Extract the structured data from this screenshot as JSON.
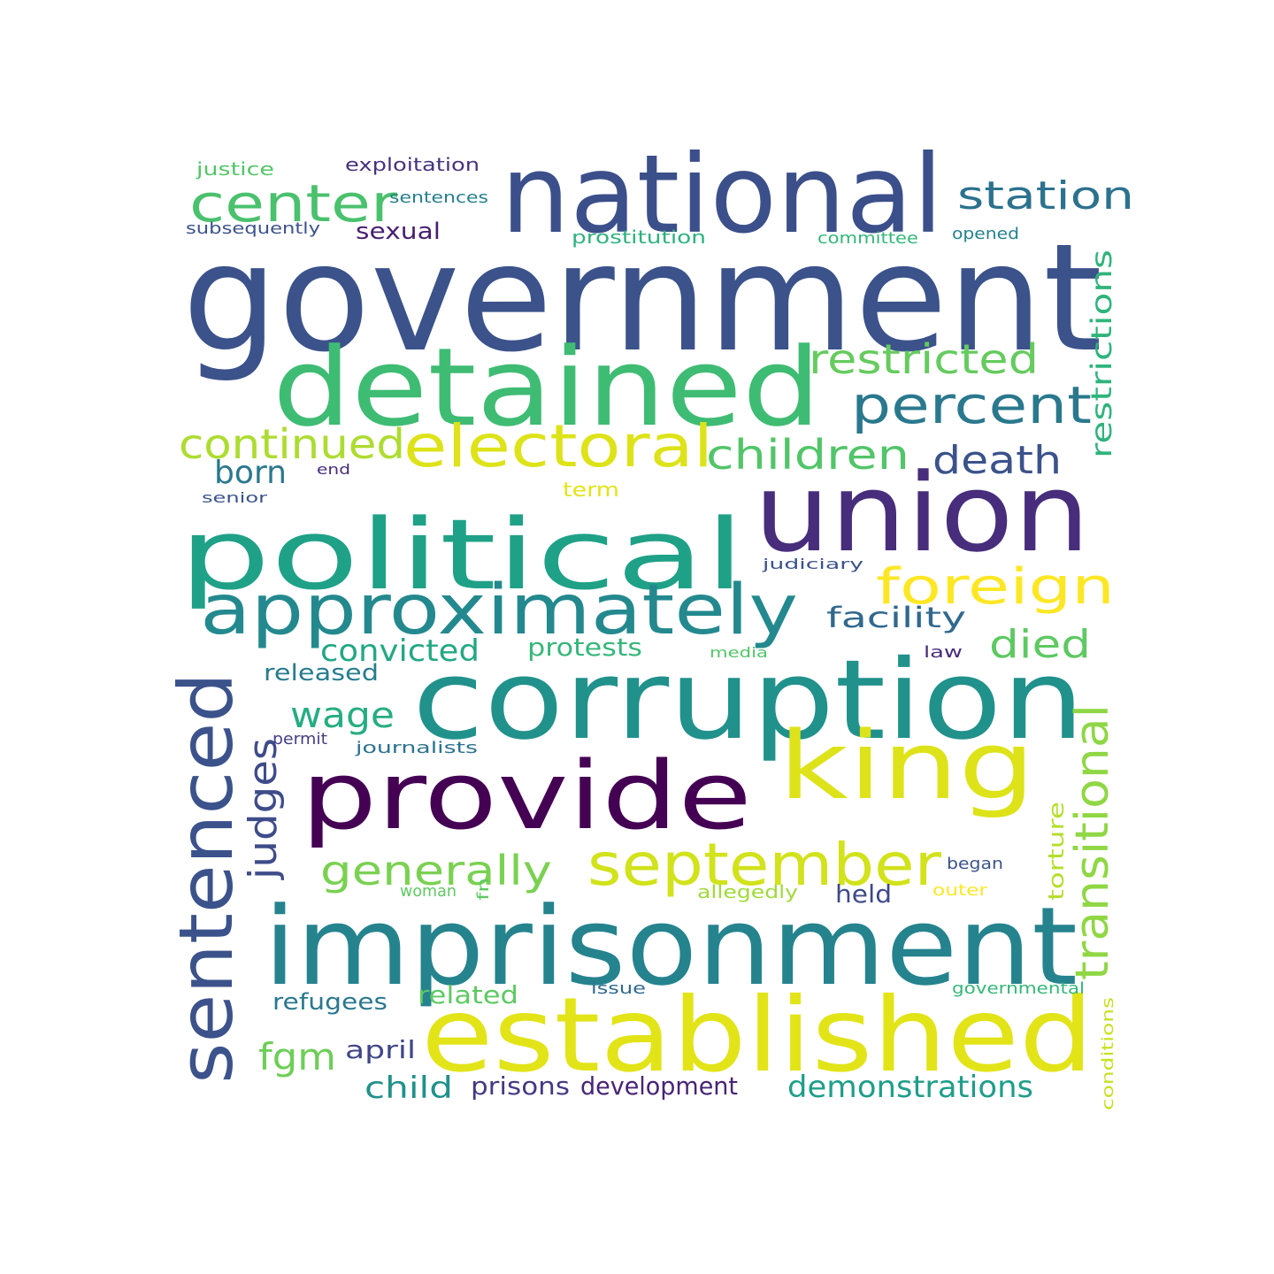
{
  "word_cloud": {
    "background_color": "#ffffff",
    "colormap": "viridis",
    "words": [
      {
        "text": "government",
        "color": "#3b528b"
      },
      {
        "text": "national",
        "color": "#3b4f8a"
      },
      {
        "text": "detained",
        "color": "#3fbc73"
      },
      {
        "text": "union",
        "color": "#472d7b"
      },
      {
        "text": "political",
        "color": "#1fa187"
      },
      {
        "text": "corruption",
        "color": "#21918c"
      },
      {
        "text": "imprisonment",
        "color": "#25838e"
      },
      {
        "text": "established",
        "color": "#e2e418"
      },
      {
        "text": "provide",
        "color": "#440154"
      },
      {
        "text": "king",
        "color": "#dde318"
      },
      {
        "text": "approximately",
        "color": "#23898e"
      },
      {
        "text": "sentenced",
        "color": "#3b528b"
      },
      {
        "text": "september",
        "color": "#d2e21b"
      },
      {
        "text": "electoral",
        "color": "#dde318"
      },
      {
        "text": "center",
        "color": "#4ac16d"
      },
      {
        "text": "restricted",
        "color": "#65cb5e"
      },
      {
        "text": "percent",
        "color": "#2a788e"
      },
      {
        "text": "station",
        "color": "#2c728e"
      },
      {
        "text": "foreign",
        "color": "#fde725"
      },
      {
        "text": "continued",
        "color": "#addc30"
      },
      {
        "text": "children",
        "color": "#52c569"
      },
      {
        "text": "death",
        "color": "#3b528b"
      },
      {
        "text": "transitional",
        "color": "#8fd744"
      },
      {
        "text": "judges",
        "color": "#3e4c8a"
      },
      {
        "text": "generally",
        "color": "#7ad151"
      },
      {
        "text": "died",
        "color": "#5ec962"
      },
      {
        "text": "restrictions",
        "color": "#2fb47c"
      },
      {
        "text": "facility",
        "color": "#31688e"
      },
      {
        "text": "convicted",
        "color": "#22a884"
      },
      {
        "text": "wage",
        "color": "#26ad81"
      },
      {
        "text": "born",
        "color": "#2a788e"
      },
      {
        "text": "fgm",
        "color": "#6ece58"
      },
      {
        "text": "demonstrations",
        "color": "#1f9e89"
      },
      {
        "text": "child",
        "color": "#21918c"
      },
      {
        "text": "prisons",
        "color": "#443983"
      },
      {
        "text": "development",
        "color": "#482475"
      },
      {
        "text": "refugees",
        "color": "#2a788e"
      },
      {
        "text": "related",
        "color": "#5ec962"
      },
      {
        "text": "april",
        "color": "#404688"
      },
      {
        "text": "held",
        "color": "#3e4989"
      },
      {
        "text": "released",
        "color": "#287c8e"
      },
      {
        "text": "protests",
        "color": "#35b779"
      },
      {
        "text": "sexual",
        "color": "#481f70"
      },
      {
        "text": "torture",
        "color": "#b5de2b"
      },
      {
        "text": "conditions",
        "color": "#c8e020"
      },
      {
        "text": "justice",
        "color": "#54c568"
      },
      {
        "text": "exploitation",
        "color": "#46327e"
      },
      {
        "text": "sentences",
        "color": "#277f8e"
      },
      {
        "text": "subsequently",
        "color": "#3b528b"
      },
      {
        "text": "prostitution",
        "color": "#2db27d"
      },
      {
        "text": "committee",
        "color": "#35b779"
      },
      {
        "text": "opened",
        "color": "#26828e"
      },
      {
        "text": "journalists",
        "color": "#2c728e"
      },
      {
        "text": "permit",
        "color": "#433e85"
      },
      {
        "text": "term",
        "color": "#e2e418"
      },
      {
        "text": "end",
        "color": "#472c7a"
      },
      {
        "text": "senior",
        "color": "#3b528b"
      },
      {
        "text": "judiciary",
        "color": "#3b528b"
      },
      {
        "text": "media",
        "color": "#52c569"
      },
      {
        "text": "law",
        "color": "#472d7b"
      },
      {
        "text": "began",
        "color": "#3b528b"
      },
      {
        "text": "woman",
        "color": "#5ec962"
      },
      {
        "text": "fn",
        "color": "#5ec962"
      },
      {
        "text": "allegedly",
        "color": "#a0da39"
      },
      {
        "text": "outer",
        "color": "#fde725"
      },
      {
        "text": "issue",
        "color": "#31688e"
      },
      {
        "text": "governmental",
        "color": "#35b779"
      }
    ]
  }
}
